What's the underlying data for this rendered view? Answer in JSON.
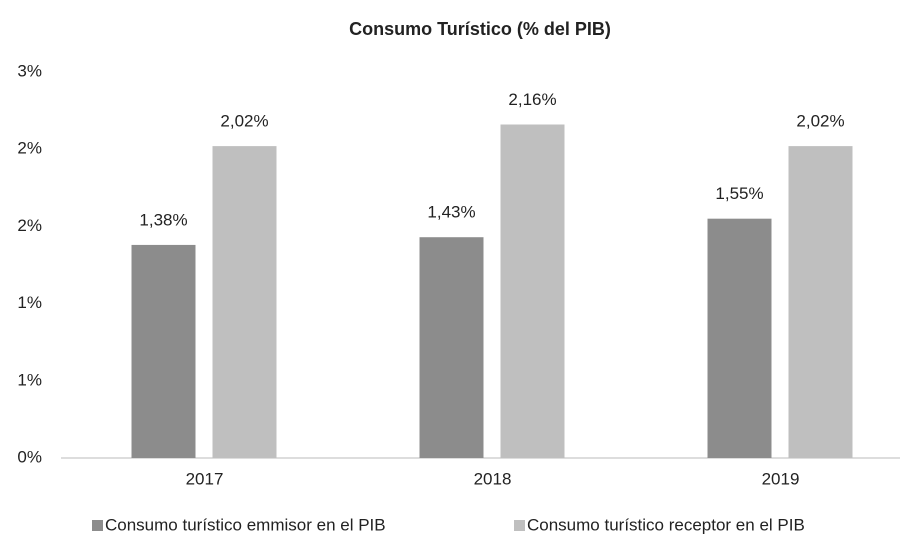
{
  "chart_data": {
    "type": "bar",
    "title": "Consumo Turístico (% del PIB)",
    "categories": [
      "2017",
      "2018",
      "2019"
    ],
    "series": [
      {
        "name": "Consumo turístico emmisor en el PIB",
        "color": "#8c8c8c",
        "values": [
          1.38,
          1.43,
          1.55
        ],
        "value_labels": [
          "1,38%",
          "1,43%",
          "1,55%"
        ]
      },
      {
        "name": "Consumo turístico receptor en el PIB",
        "color": "#bfbfbf",
        "values": [
          2.02,
          2.16,
          2.02
        ],
        "value_labels": [
          "2,02%",
          "2,16%",
          "2,02%"
        ]
      }
    ],
    "ylim": [
      0,
      2.5
    ],
    "yticks": [
      {
        "value": 0,
        "label": "0%"
      },
      {
        "value": 0.5,
        "label": "1%"
      },
      {
        "value": 1,
        "label": "1%"
      },
      {
        "value": 1.5,
        "label": "2%"
      },
      {
        "value": 2,
        "label": "2%"
      },
      {
        "value": 2.5,
        "label": "3%"
      }
    ],
    "grid": false,
    "legend": "bottom"
  }
}
